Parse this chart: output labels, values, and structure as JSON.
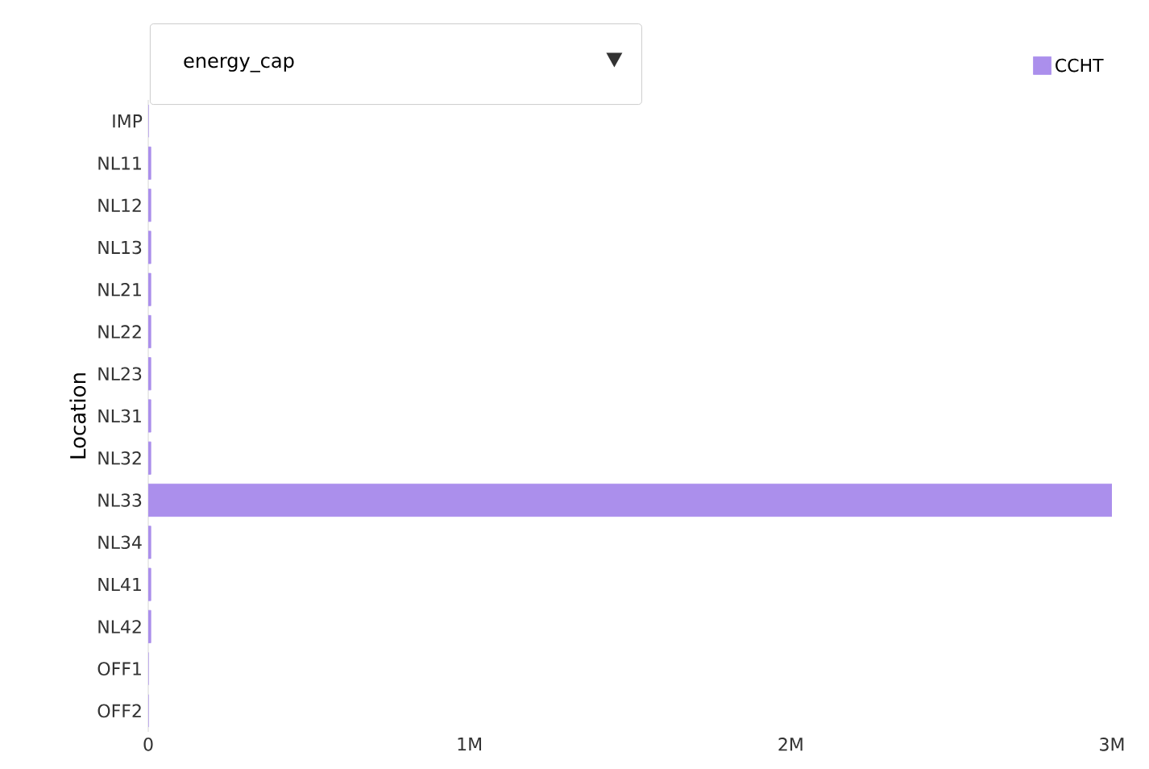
{
  "chart_data": {
    "type": "bar",
    "orientation": "horizontal",
    "ylabel": "Location",
    "categories": [
      "IMP",
      "NL11",
      "NL12",
      "NL13",
      "NL21",
      "NL22",
      "NL23",
      "NL31",
      "NL32",
      "NL33",
      "NL34",
      "NL41",
      "NL42",
      "OFF1",
      "OFF2"
    ],
    "series": [
      {
        "name": "CCHT",
        "color": "#ab8fec",
        "values": [
          0,
          8000,
          8000,
          8000,
          8000,
          8000,
          8000,
          8000,
          8000,
          3000000,
          8000,
          8000,
          8000,
          0,
          0
        ]
      }
    ],
    "xlim": [
      0,
      3000000
    ],
    "xticks": [
      0,
      {
        "value": 1000000,
        "label": "1M"
      },
      {
        "value": 2000000,
        "label": "2M"
      },
      {
        "value": 3000000,
        "label": "3M"
      }
    ],
    "legend": "top right",
    "grid": false,
    "annotations": [
      "energy_cap"
    ]
  }
}
